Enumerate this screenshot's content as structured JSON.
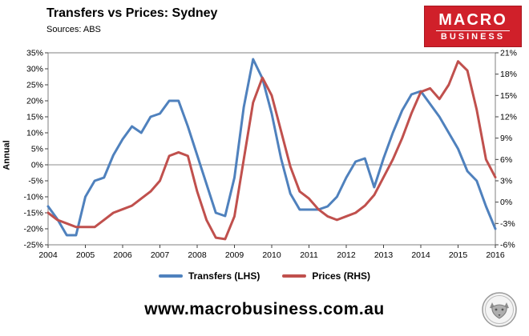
{
  "header": {
    "title": "Transfers vs Prices: Sydney",
    "source": "Sources: ABS"
  },
  "logo": {
    "line1": "MACRO",
    "line2": "BUSINESS",
    "bg_color": "#d0202a",
    "fg_color": "#ffffff"
  },
  "legend": [
    {
      "label": "Transfers (LHS)",
      "color": "#4F81BD"
    },
    {
      "label": "Prices (RHS)",
      "color": "#C0504D"
    }
  ],
  "footer": {
    "url": "www.macrobusiness.com.au"
  },
  "chart_data": {
    "type": "line",
    "title": "Transfers vs Prices: Sydney",
    "ylabel_left": "Annual",
    "grid": "zero-line-only",
    "legend_position": "bottom",
    "x_ticks": [
      2004,
      2005,
      2006,
      2007,
      2008,
      2009,
      2010,
      2011,
      2012,
      2013,
      2014,
      2015,
      2016
    ],
    "left_axis": {
      "min": -25,
      "max": 35,
      "step": 5,
      "format": "percent"
    },
    "right_axis": {
      "min": -6,
      "max": 21,
      "step": 3,
      "format": "percent"
    },
    "x": [
      2004,
      2004.25,
      2004.5,
      2004.75,
      2005,
      2005.25,
      2005.5,
      2005.75,
      2006,
      2006.25,
      2006.5,
      2006.75,
      2007,
      2007.25,
      2007.5,
      2007.75,
      2008,
      2008.25,
      2008.5,
      2008.75,
      2009,
      2009.25,
      2009.5,
      2009.75,
      2010,
      2010.25,
      2010.5,
      2010.75,
      2011,
      2011.25,
      2011.5,
      2011.75,
      2012,
      2012.25,
      2012.5,
      2012.75,
      2013,
      2013.25,
      2013.5,
      2013.75,
      2014,
      2014.25,
      2014.5,
      2014.75,
      2015,
      2015.25,
      2015.5,
      2015.75,
      2016
    ],
    "series": [
      {
        "name": "Transfers (LHS)",
        "axis": "left",
        "color": "#4F81BD",
        "values": [
          -13,
          -17,
          -22,
          -22,
          -10,
          -5,
          -4,
          3,
          8,
          12,
          10,
          15,
          16,
          20,
          20,
          12,
          3,
          -6,
          -15,
          -16,
          -4,
          18,
          33,
          27,
          16,
          2,
          -9,
          -14,
          -14,
          -14,
          -13,
          -10,
          -4,
          1,
          2,
          -7,
          2,
          10,
          17,
          22,
          23,
          19,
          15,
          10,
          5,
          -2,
          -5,
          -13,
          -20
        ]
      },
      {
        "name": "Prices (RHS)",
        "axis": "right",
        "color": "#C0504D",
        "values": [
          -1.5,
          -2.5,
          -3,
          -3.5,
          -3.5,
          -3.5,
          -2.5,
          -1.5,
          -1,
          -0.5,
          0.5,
          1.5,
          3,
          6.5,
          7,
          6.5,
          1.5,
          -2.5,
          -5,
          -5.2,
          -2,
          6,
          14,
          17.5,
          15,
          10,
          5,
          1.5,
          0.5,
          -1,
          -2,
          -2.5,
          -2,
          -1.5,
          -0.5,
          1,
          3.5,
          6,
          9,
          12.5,
          15.5,
          16,
          14.5,
          16.5,
          19.8,
          18.5,
          13,
          6,
          3.5
        ]
      }
    ]
  }
}
